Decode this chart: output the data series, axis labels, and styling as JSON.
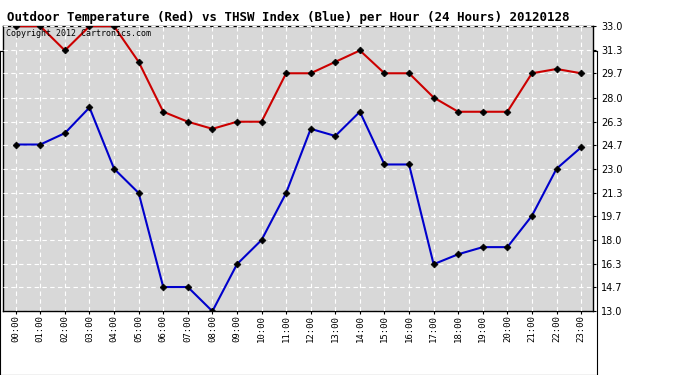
{
  "title": "Outdoor Temperature (Red) vs THSW Index (Blue) per Hour (24 Hours) 20120128",
  "copyright_text": "Copyright 2012 Cartronics.com",
  "x_labels": [
    "00:00",
    "01:00",
    "02:00",
    "03:00",
    "04:00",
    "05:00",
    "06:00",
    "07:00",
    "08:00",
    "09:00",
    "10:00",
    "11:00",
    "12:00",
    "13:00",
    "14:00",
    "15:00",
    "16:00",
    "17:00",
    "18:00",
    "19:00",
    "20:00",
    "21:00",
    "22:00",
    "23:00"
  ],
  "red_data": [
    33.0,
    33.0,
    31.3,
    33.0,
    33.0,
    30.5,
    27.0,
    26.3,
    25.8,
    26.3,
    26.3,
    29.7,
    29.7,
    30.5,
    31.3,
    29.7,
    29.7,
    28.0,
    27.0,
    27.0,
    27.0,
    29.7,
    30.0,
    29.7
  ],
  "blue_data": [
    24.7,
    24.7,
    25.5,
    27.3,
    23.0,
    21.3,
    14.7,
    14.7,
    13.0,
    16.3,
    18.0,
    21.3,
    25.8,
    25.3,
    27.0,
    23.3,
    23.3,
    16.3,
    17.0,
    17.5,
    17.5,
    19.7,
    23.0,
    24.5
  ],
  "ylim_min": 13.0,
  "ylim_max": 33.0,
  "yticks": [
    13.0,
    14.7,
    16.3,
    18.0,
    19.7,
    21.3,
    23.0,
    24.7,
    26.3,
    28.0,
    29.7,
    31.3,
    33.0
  ],
  "red_color": "#cc0000",
  "blue_color": "#0000cc",
  "plot_bg_color": "#d8d8d8",
  "fig_bg_color": "#ffffff",
  "grid_color": "#ffffff",
  "title_color": "#000000",
  "marker_size": 3.5,
  "line_width": 1.5,
  "font_family": "monospace"
}
